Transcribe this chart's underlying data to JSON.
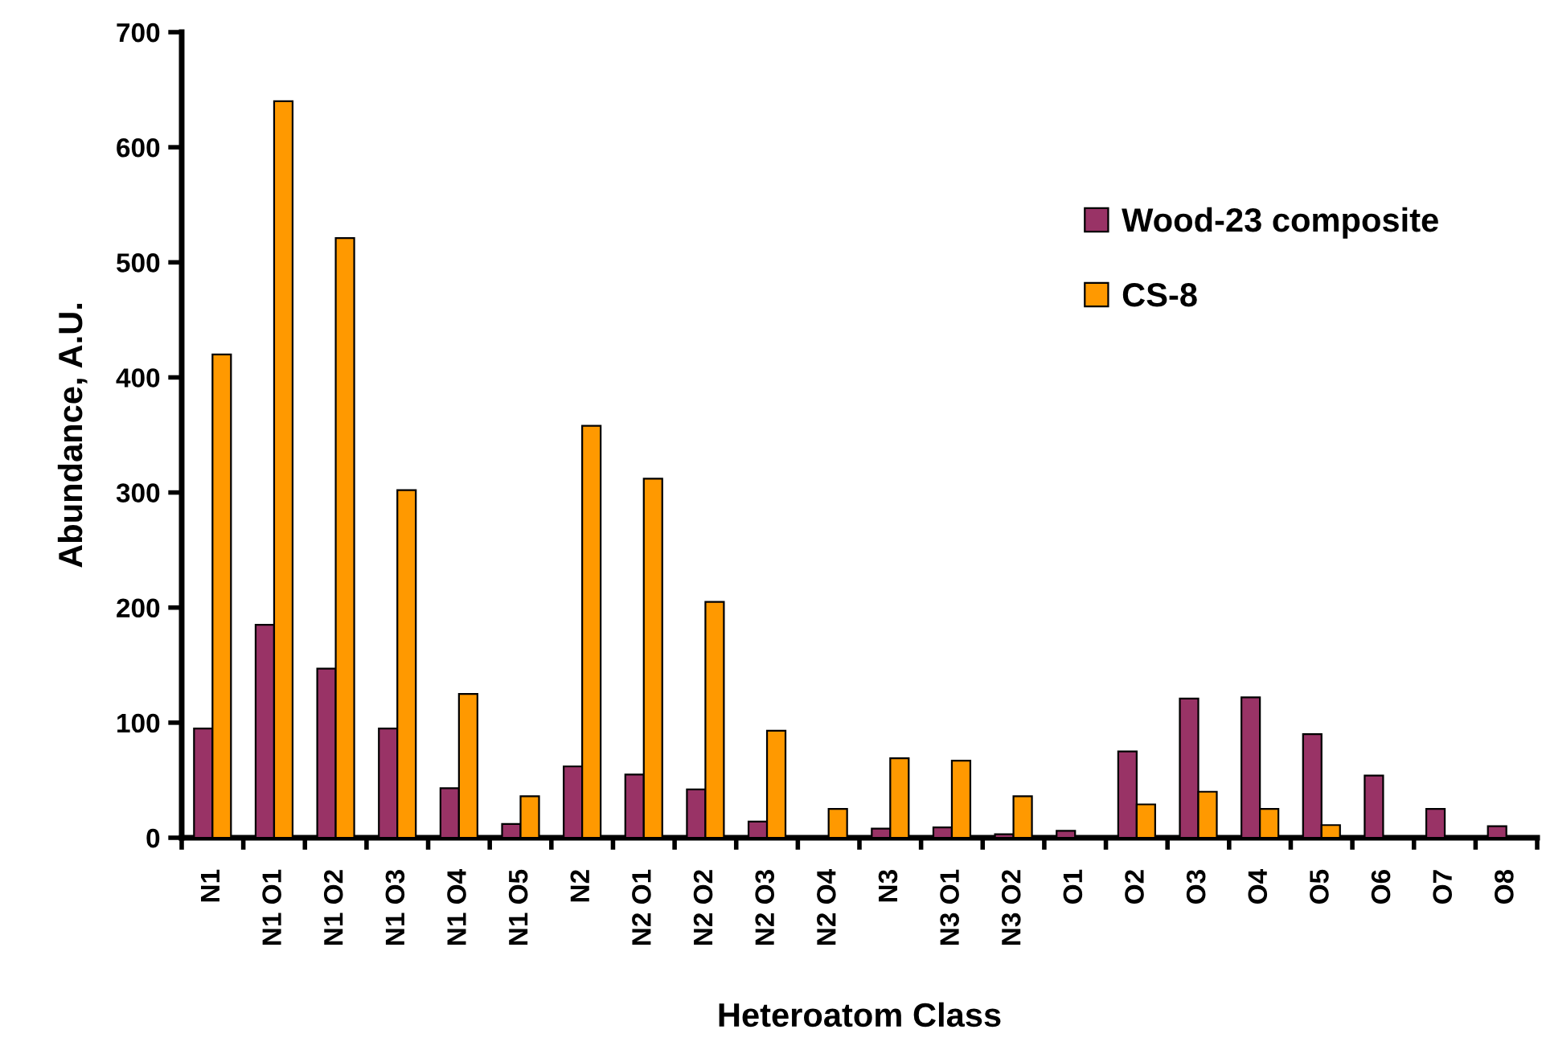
{
  "chart_data": {
    "type": "bar",
    "xlabel": "Heteroatom Class",
    "ylabel": "Abundance, A.U.",
    "categories": [
      "N1",
      "N1 O1",
      "N1 O2",
      "N1 O3",
      "N1 O4",
      "N1 O5",
      "N2",
      "N2 O1",
      "N2 O2",
      "N2 O3",
      "N2 O4",
      "N3",
      "N3 O1",
      "N3 O2",
      "O1",
      "O2",
      "O3",
      "O4",
      "O5",
      "O6",
      "O7",
      "O8"
    ],
    "series": [
      {
        "name": "Wood-23 composite",
        "color": "#993366",
        "values": [
          95,
          185,
          147,
          95,
          43,
          12,
          62,
          55,
          42,
          14,
          null,
          8,
          9,
          3,
          6,
          75,
          121,
          122,
          90,
          54,
          25,
          10
        ]
      },
      {
        "name": "CS-8",
        "color": "#ff9900",
        "values": [
          420,
          640,
          521,
          302,
          125,
          36,
          358,
          312,
          205,
          93,
          25,
          69,
          67,
          36,
          null,
          29,
          40,
          25,
          11,
          null,
          null,
          null
        ]
      }
    ],
    "ylim": [
      0,
      700
    ],
    "yticks": [
      0,
      100,
      200,
      300,
      400,
      500,
      600,
      700
    ],
    "grid": false,
    "legend": "top right"
  }
}
